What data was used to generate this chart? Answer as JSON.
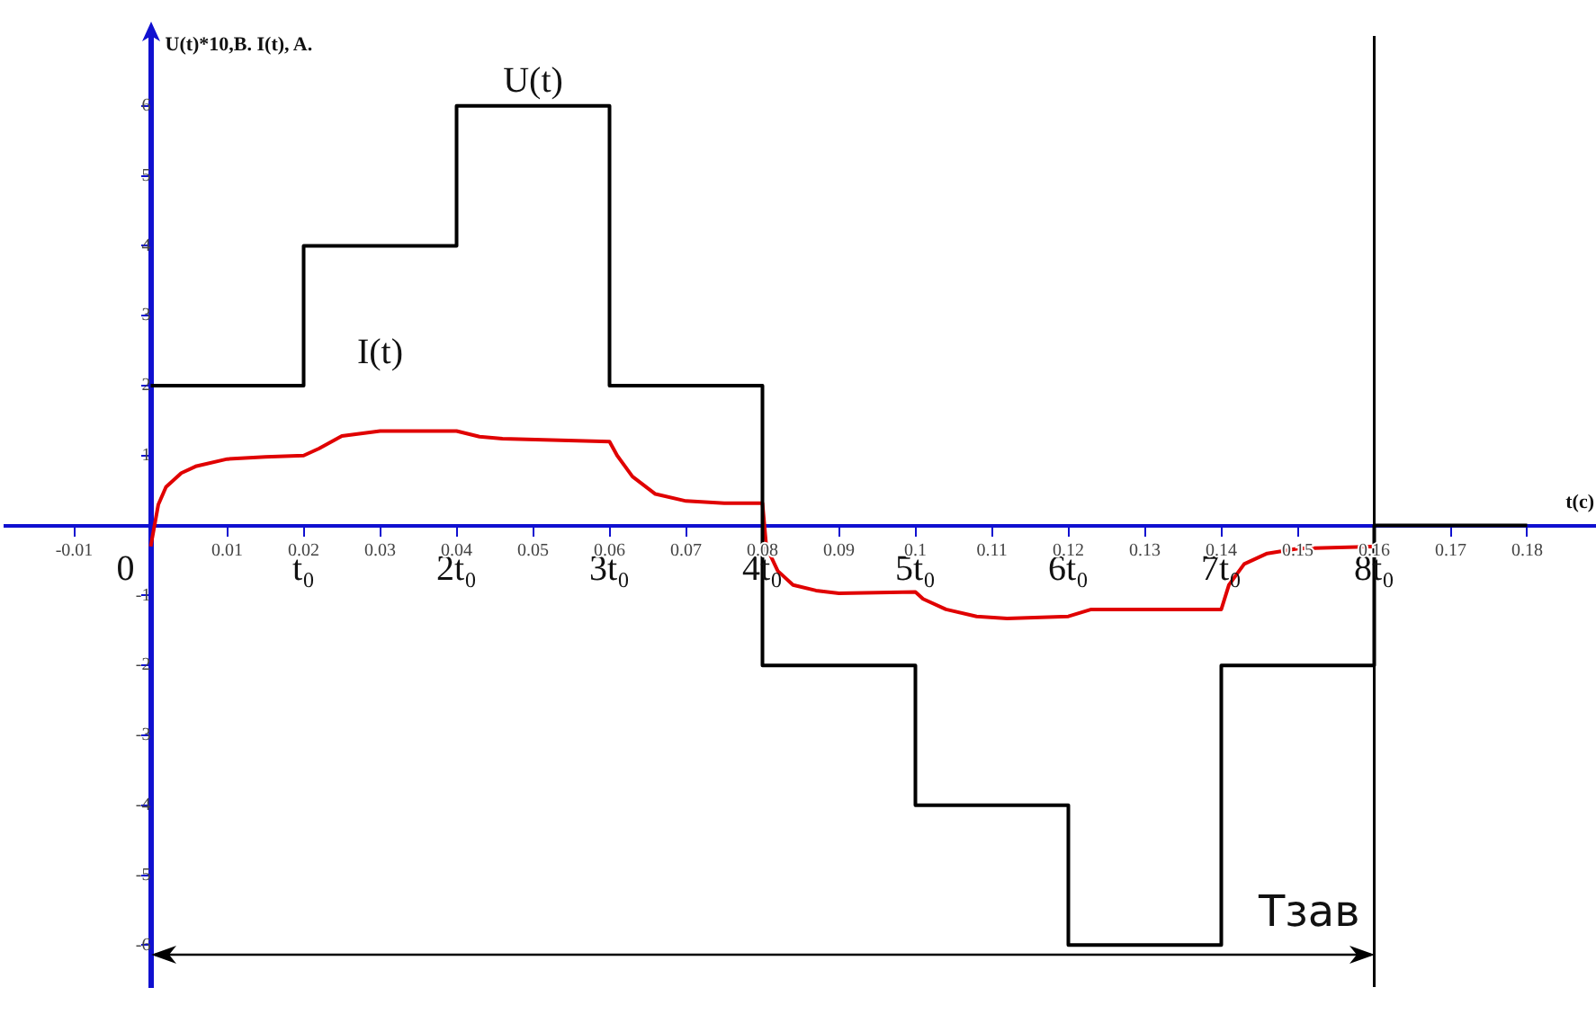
{
  "chart_data": {
    "type": "line",
    "ylabel": "U(t)*10,B. I(t), A.",
    "xlabel": "t(c)",
    "xlim": [
      -0.019,
      0.189
    ],
    "ylim": [
      -6.6,
      7
    ],
    "xticks": [
      -0.01,
      0.01,
      0.02,
      0.03,
      0.04,
      0.05,
      0.06,
      0.07,
      0.08,
      0.09,
      0.1,
      0.11,
      0.12,
      0.13,
      0.14,
      0.15,
      0.16,
      0.17,
      0.18
    ],
    "yticks": [
      -6,
      -5,
      -4,
      -3,
      -2,
      -1,
      1,
      2,
      3,
      4,
      5,
      6
    ],
    "grid": false,
    "legend": false,
    "series": [
      {
        "name": "U(t)",
        "type": "step",
        "color": "#000000",
        "x": [
          0,
          0.02,
          0.04,
          0.06,
          0.08,
          0.1,
          0.12,
          0.14,
          0.16,
          0.18
        ],
        "values": [
          2,
          4,
          6,
          2,
          -2,
          -4,
          -6,
          -2,
          0,
          0
        ]
      },
      {
        "name": "I(t)",
        "type": "line",
        "color": "#e00000",
        "x": [
          0,
          0.001,
          0.002,
          0.004,
          0.006,
          0.01,
          0.015,
          0.02,
          0.022,
          0.025,
          0.03,
          0.04,
          0.043,
          0.046,
          0.06,
          0.061,
          0.063,
          0.066,
          0.07,
          0.075,
          0.08,
          0.0805,
          0.082,
          0.084,
          0.087,
          0.09,
          0.1,
          0.101,
          0.104,
          0.108,
          0.112,
          0.12,
          0.123,
          0.14,
          0.141,
          0.143,
          0.146,
          0.15,
          0.16
        ],
        "values": [
          -0.3,
          0.3,
          0.55,
          0.75,
          0.85,
          0.95,
          0.98,
          1.0,
          1.1,
          1.28,
          1.35,
          1.35,
          1.27,
          1.24,
          1.2,
          1.0,
          0.7,
          0.45,
          0.35,
          0.32,
          0.32,
          -0.3,
          -0.65,
          -0.85,
          -0.93,
          -0.97,
          -0.95,
          -1.05,
          -1.2,
          -1.3,
          -1.33,
          -1.3,
          -1.2,
          -1.2,
          -0.85,
          -0.55,
          -0.4,
          -0.33,
          -0.3
        ]
      }
    ],
    "ref_lines": [
      {
        "axis": "x",
        "value": 0.16,
        "label": "Tзав",
        "color": "#000000"
      }
    ],
    "annotations": [
      "0",
      "t₀",
      "2t₀",
      "3t₀",
      "4t₀",
      "5t₀",
      "6t₀",
      "7t₀",
      "8t₀"
    ]
  }
}
